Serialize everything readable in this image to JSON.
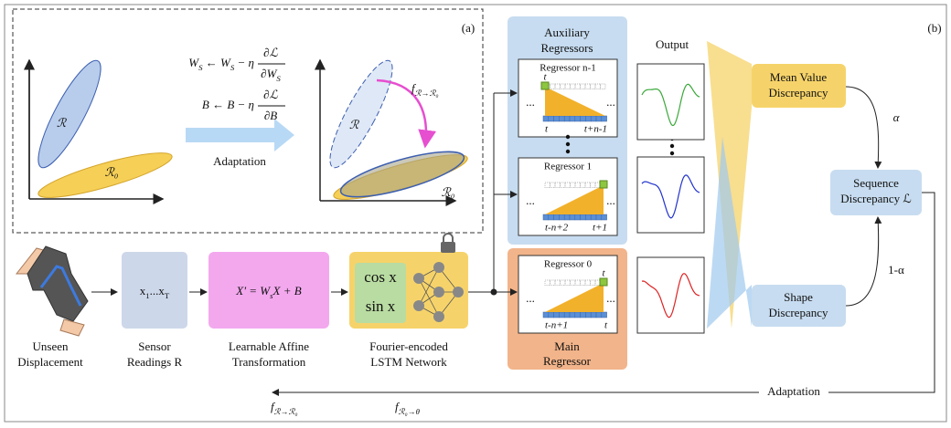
{
  "panel_a": {
    "label": "(a)",
    "update_rules": [
      {
        "expr": [
          {
            "text": "W"
          },
          {
            "sub": "S"
          },
          {
            "text": " ← W"
          },
          {
            "sub": "S"
          },
          {
            "text": " − η"
          }
        ],
        "numerator": "∂ℒ",
        "denominator": [
          {
            "text": "∂W"
          },
          {
            "sub": "S"
          }
        ]
      },
      {
        "expr": [
          {
            "text": "B ← B − η"
          }
        ],
        "numerator": "∂ℒ",
        "denominator": [
          {
            "text": "∂B"
          }
        ]
      }
    ],
    "arrow_label": "Adaptation",
    "before": {
      "r": "ℛ",
      "r0": "ℛ₀"
    },
    "after": {
      "r": "ℛ",
      "r0": "ℛ₀",
      "mapping": [
        {
          "text": "f"
        },
        {
          "sub": "ℛ→ℛ₀"
        }
      ]
    }
  },
  "panel_b": {
    "label": "(b)",
    "auxiliary": [
      "Auxiliary",
      "Regressors"
    ],
    "main": [
      "Main",
      "Regressor"
    ],
    "ellipsis": "...",
    "regressors": [
      {
        "name": "Regressor n-1",
        "top_label": "t",
        "start": "t",
        "end": "t+n-1"
      },
      {
        "name": "Regressor 1",
        "start": "t-n+2",
        "end": "t+1"
      },
      {
        "name": "Regressor 0",
        "top_label": "t",
        "start": "t-n+1",
        "end": "t"
      }
    ],
    "output_label": "Output",
    "mean_value": [
      "Mean Value",
      "Discrepancy"
    ],
    "shape": [
      "Shape",
      "Discrepancy"
    ],
    "sequence": [
      "Sequence",
      "Discrepancy ℒ"
    ],
    "alpha": "α",
    "one_minus_alpha": "1-α",
    "adaptation": "Adaptation",
    "input_caption": [
      "Unseen",
      "Displacement"
    ],
    "sensor": {
      "formula": [
        {
          "text": "x"
        },
        {
          "sub": "1"
        },
        {
          "text": "...x"
        },
        {
          "sub": "T"
        }
      ],
      "caption": [
        "Sensor",
        "Readings R"
      ]
    },
    "affine": {
      "formula": [
        {
          "text": "X' = W"
        },
        {
          "sub": "s"
        },
        {
          "text": "X + B"
        }
      ],
      "caption": [
        "Learnable Affine",
        "Transformation"
      ]
    },
    "lstm": {
      "features": [
        "cos x",
        "sin x"
      ],
      "caption": [
        "Fourier-encoded",
        "LSTM Network"
      ]
    },
    "mappings": [
      [
        {
          "text": "f"
        },
        {
          "sub": "ℛ→ℛ₀"
        }
      ],
      [
        {
          "text": "f"
        },
        {
          "sub": "ℛ₀→θ"
        }
      ]
    ]
  }
}
